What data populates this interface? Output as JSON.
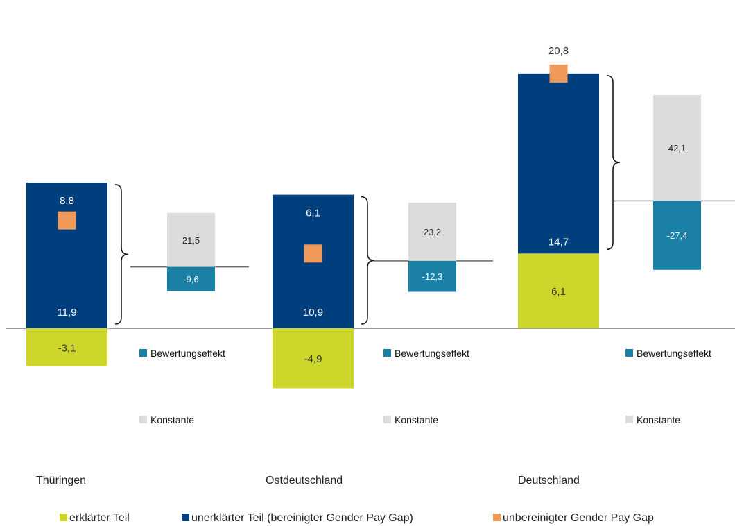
{
  "chart_data": {
    "type": "bar",
    "title": "",
    "xlabel": "",
    "ylabel": "",
    "ylim": [
      -6,
      23.2
    ],
    "grid": false,
    "groups": [
      {
        "name": "Thüringen",
        "explained": -3.1,
        "explained_label": "-3,1",
        "unexplained": 11.9,
        "unexplained_label": "11,9",
        "gap": 8.8,
        "gap_label": "8,8",
        "side_reference": 5.0,
        "konstante": 21.5,
        "konstante_label": "21,5",
        "bewertungseffekt": -9.6,
        "bewertungseffekt_label": "-9,6"
      },
      {
        "name": "Ostdeutschland",
        "explained": -4.9,
        "explained_label": "-4,9",
        "unexplained": 10.9,
        "unexplained_label": "10,9",
        "gap": 6.1,
        "gap_label": "6,1",
        "side_reference": 5.5,
        "konstante": 23.2,
        "konstante_label": "23,2",
        "bewertungseffekt": -12.3,
        "bewertungseffekt_label": "-12,3"
      },
      {
        "name": "Deutschland",
        "explained": 6.1,
        "explained_label": "6,1",
        "unexplained": 14.7,
        "unexplained_label": "14,7",
        "gap": 20.8,
        "gap_label": "20,8",
        "side_reference": 10.4,
        "konstante": 42.1,
        "konstante_label": "42,1",
        "bewertungseffekt": -27.4,
        "bewertungseffekt_label": "-27,4"
      }
    ],
    "side_legend": {
      "bewertungseffekt": "Bewertungseffekt",
      "konstante": "Konstante"
    },
    "legend": [
      {
        "key": "explained",
        "label": "erklärter Teil"
      },
      {
        "key": "unexplained",
        "label": "unerklärter Teil (bereinigter Gender Pay Gap)"
      },
      {
        "key": "gap",
        "label": "unbereinigter Gender Pay Gap"
      }
    ],
    "colors": {
      "explained": "#cdd62b",
      "unexplained": "#003f7d",
      "gap": "#ef9a5a",
      "bewertungseffekt": "#1a80a5",
      "konstante": "#dcdcdc",
      "axis": "#7f7f7f",
      "brace": "#1a1a1a"
    }
  }
}
